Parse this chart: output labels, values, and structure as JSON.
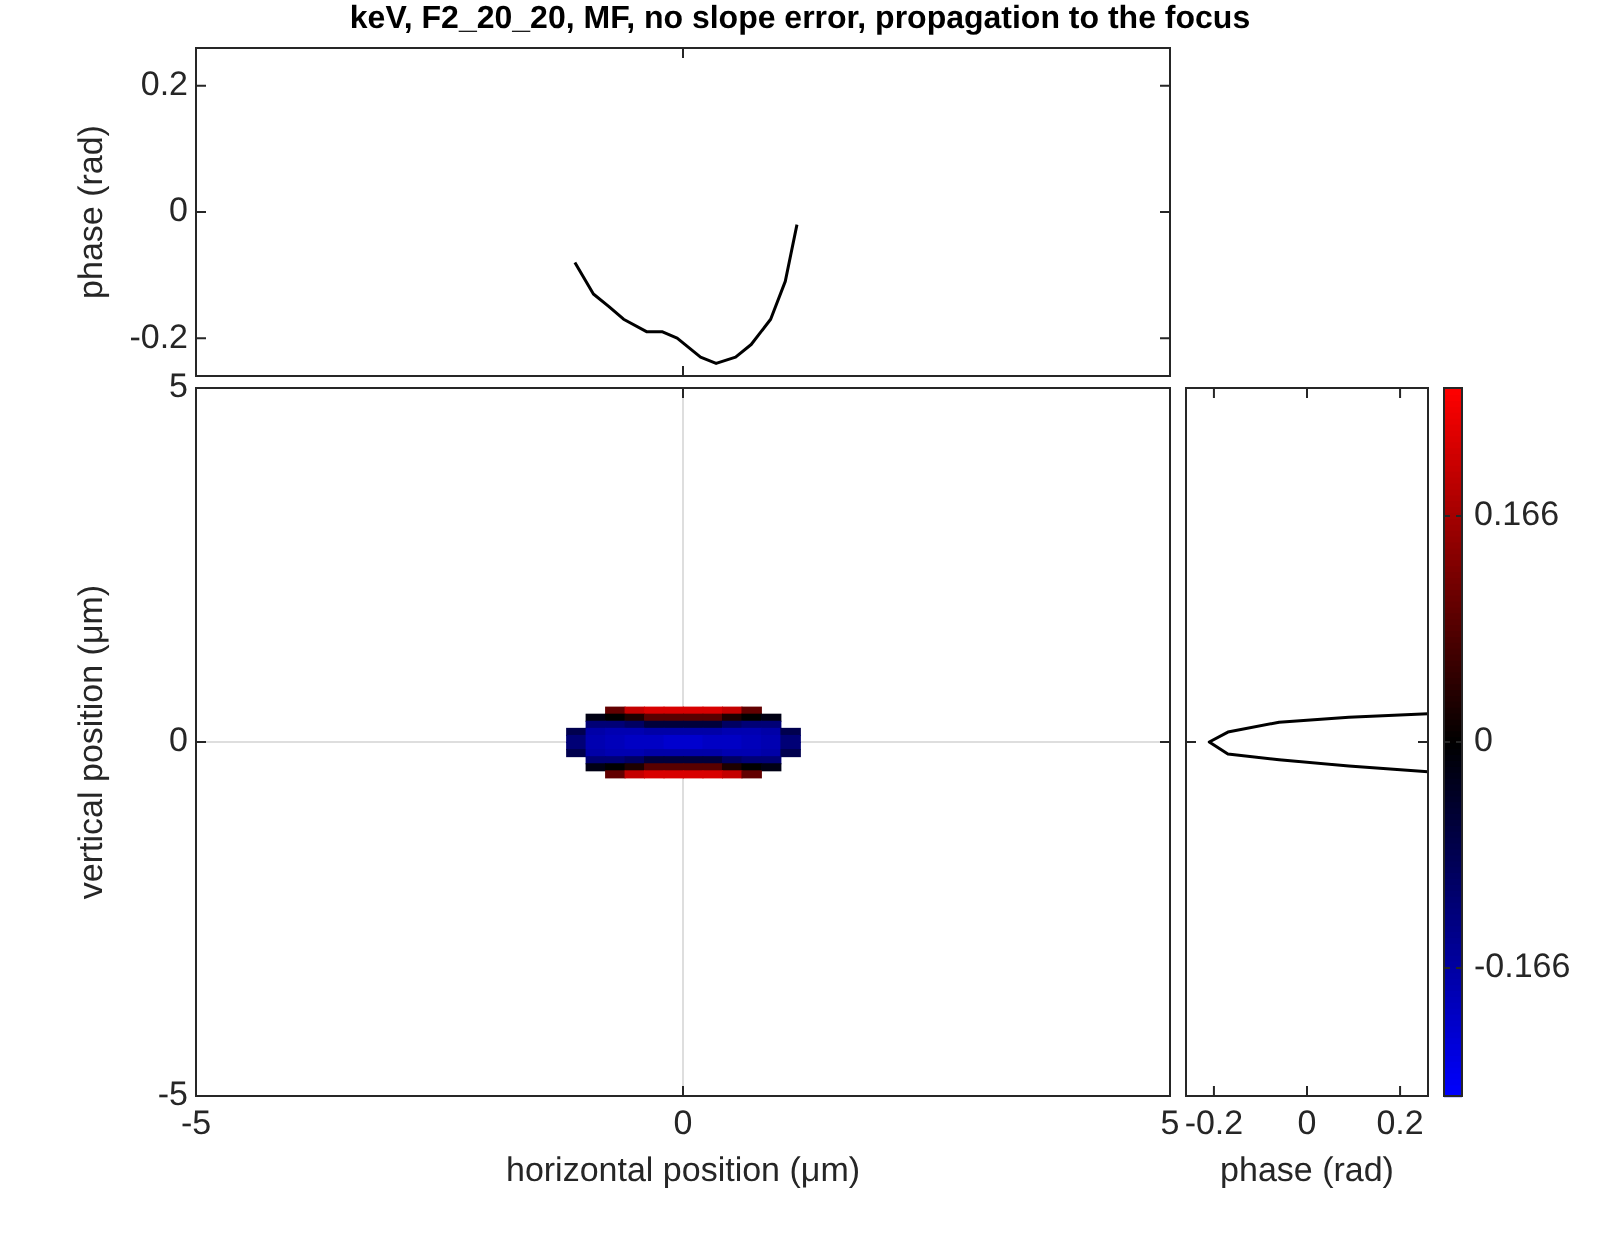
{
  "chart_data": [
    {
      "type": "line",
      "title": "keV, F2_20_20, MF, no slope error, propagation to the focus",
      "ylabel": "phase (rad)",
      "x": [
        -1.11,
        -0.92,
        -0.76,
        -0.61,
        -0.37,
        -0.21,
        -0.06,
        0.18,
        0.34,
        0.54,
        0.7,
        0.9,
        1.05,
        1.17
      ],
      "series": [
        {
          "color": "#000000",
          "values": [
            -0.08,
            -0.13,
            -0.15,
            -0.17,
            -0.19,
            -0.19,
            -0.2,
            -0.23,
            -0.24,
            -0.23,
            -0.21,
            -0.17,
            -0.11,
            -0.02
          ]
        }
      ],
      "xlim": [
        -5,
        5
      ],
      "xticks": [
        {
          "value": -5,
          "label": null
        },
        {
          "value": 0,
          "label": null
        },
        {
          "value": 5,
          "label": null
        }
      ],
      "ylim": [
        -0.26,
        0.26
      ],
      "yticks": [
        -0.2,
        0,
        0.2
      ],
      "tick_labels": "y"
    },
    {
      "type": "heatmap",
      "xlabel": "horizontal position (μm)",
      "ylabel": "vertical position (μm)",
      "x": [
        -1.1,
        -0.9,
        -0.7,
        -0.5,
        -0.3,
        -0.1,
        0.1,
        0.3,
        0.5,
        0.7,
        0.9,
        1.1
      ],
      "y": [
        0.45,
        0.35,
        0.25,
        0.15,
        0.05,
        -0.05,
        -0.15,
        -0.25,
        -0.35,
        -0.45
      ],
      "cells": [
        [
          null,
          null,
          0.1,
          0.2,
          0.22,
          0.22,
          0.22,
          0.22,
          0.2,
          0.1,
          null,
          null
        ],
        [
          null,
          -0.02,
          0,
          0.03,
          0.09,
          0.09,
          0.09,
          0.09,
          0.03,
          0,
          -0.02,
          null
        ],
        [
          null,
          -0.12,
          -0.12,
          -0.1,
          -0.06,
          -0.06,
          -0.06,
          -0.06,
          -0.1,
          -0.12,
          -0.12,
          null
        ],
        [
          -0.08,
          -0.17,
          -0.18,
          -0.18,
          -0.17,
          -0.17,
          -0.17,
          -0.17,
          -0.18,
          -0.18,
          -0.17,
          -0.08
        ],
        [
          -0.12,
          -0.18,
          -0.19,
          -0.2,
          -0.2,
          -0.21,
          -0.21,
          -0.2,
          -0.2,
          -0.19,
          -0.18,
          -0.12
        ],
        [
          -0.12,
          -0.18,
          -0.19,
          -0.2,
          -0.2,
          -0.21,
          -0.21,
          -0.2,
          -0.2,
          -0.19,
          -0.18,
          -0.12
        ],
        [
          -0.08,
          -0.17,
          -0.18,
          -0.18,
          -0.17,
          -0.17,
          -0.17,
          -0.17,
          -0.18,
          -0.18,
          -0.17,
          -0.08
        ],
        [
          null,
          -0.12,
          -0.12,
          -0.1,
          -0.06,
          -0.06,
          -0.06,
          -0.06,
          -0.1,
          -0.12,
          -0.12,
          null
        ],
        [
          null,
          -0.02,
          0,
          0.03,
          0.09,
          0.09,
          0.09,
          0.09,
          0.03,
          0,
          -0.02,
          null
        ],
        [
          null,
          null,
          0.1,
          0.2,
          0.22,
          0.22,
          0.22,
          0.22,
          0.2,
          0.1,
          null,
          null
        ]
      ],
      "colors": [
        "#0000ff",
        "#000000",
        "#ff0000"
      ],
      "clim": [
        -0.26,
        0.26
      ],
      "cticks": [
        0.166,
        0,
        -0.166
      ],
      "xlim": [
        -5,
        5
      ],
      "xticks": [
        -5,
        0,
        5
      ],
      "ylim": [
        -5,
        5
      ],
      "yticks": [
        -5,
        0,
        5
      ],
      "grid": true
    },
    {
      "type": "line",
      "xlabel": "phase (rad)",
      "x": [
        0.26,
        0.09,
        -0.06,
        -0.17,
        -0.21,
        -0.17,
        -0.06,
        0.09,
        0.26
      ],
      "series": [
        {
          "color": "#000000",
          "values": [
            0.4,
            0.35,
            0.28,
            0.14,
            0,
            -0.17,
            -0.25,
            -0.34,
            -0.42
          ]
        }
      ],
      "xlim": [
        -0.26,
        0.26
      ],
      "xticks": [
        -0.2,
        0,
        0.2
      ],
      "ylim": [
        -5,
        5
      ],
      "yticks": [
        {
          "value": -5,
          "label": null
        },
        {
          "value": 0,
          "label": null
        },
        {
          "value": 5,
          "label": null
        }
      ],
      "tick_labels": "x"
    }
  ]
}
